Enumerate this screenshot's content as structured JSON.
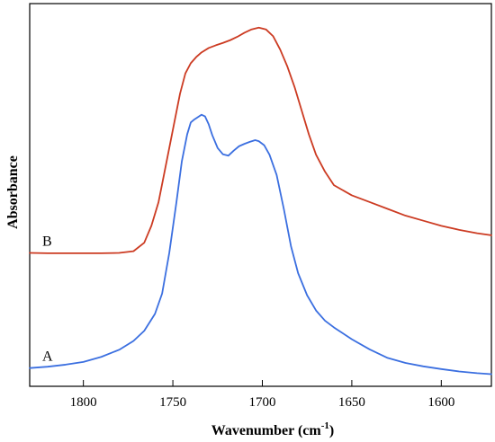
{
  "chart_data": {
    "type": "line",
    "title": "",
    "xlabel": "Wavenumber (cm",
    "xlabel_sup": "-1",
    "xlabel_suffix": ")",
    "ylabel": "Absorbance",
    "xlim": [
      1830,
      1572
    ],
    "x_reversed": true,
    "ylim": [
      0,
      1
    ],
    "y_ticks_shown": false,
    "grid": false,
    "xticks": [
      1800,
      1750,
      1700,
      1650,
      1600
    ],
    "xtick_labels": [
      "1800",
      "1750",
      "1700",
      "1650",
      "1600"
    ],
    "series": [
      {
        "name": "A",
        "color": "#3b6fe0",
        "x": [
          1830,
          1820,
          1810,
          1800,
          1790,
          1780,
          1772,
          1766,
          1760,
          1756,
          1752,
          1748,
          1745,
          1742,
          1740,
          1738,
          1736,
          1734,
          1732,
          1730,
          1728,
          1725,
          1722,
          1719,
          1716,
          1713,
          1710,
          1707,
          1704,
          1702,
          1699,
          1696,
          1692,
          1688,
          1684,
          1680,
          1675,
          1670,
          1665,
          1660,
          1650,
          1640,
          1630,
          1620,
          1610,
          1600,
          1590,
          1580,
          1572
        ],
        "y": [
          0.03,
          0.034,
          0.04,
          0.048,
          0.063,
          0.084,
          0.11,
          0.14,
          0.19,
          0.25,
          0.37,
          0.52,
          0.64,
          0.72,
          0.755,
          0.764,
          0.771,
          0.778,
          0.773,
          0.75,
          0.718,
          0.68,
          0.661,
          0.657,
          0.672,
          0.685,
          0.692,
          0.698,
          0.703,
          0.7,
          0.688,
          0.66,
          0.6,
          0.5,
          0.39,
          0.31,
          0.245,
          0.2,
          0.17,
          0.15,
          0.115,
          0.085,
          0.06,
          0.045,
          0.035,
          0.027,
          0.02,
          0.015,
          0.012
        ]
      },
      {
        "name": "B",
        "color": "#cc3b22",
        "x": [
          1830,
          1820,
          1810,
          1800,
          1790,
          1780,
          1772,
          1766,
          1762,
          1758,
          1755,
          1752,
          1749,
          1746,
          1743,
          1740,
          1737,
          1734,
          1730,
          1726,
          1722,
          1718,
          1714,
          1710,
          1706,
          1702,
          1698,
          1694,
          1690,
          1686,
          1682,
          1678,
          1674,
          1670,
          1665,
          1660,
          1650,
          1640,
          1630,
          1620,
          1610,
          1600,
          1590,
          1580,
          1572
        ],
        "y": [
          0.37,
          0.369,
          0.369,
          0.369,
          0.369,
          0.37,
          0.375,
          0.4,
          0.45,
          0.52,
          0.6,
          0.68,
          0.76,
          0.84,
          0.9,
          0.93,
          0.948,
          0.962,
          0.975,
          0.983,
          0.99,
          0.998,
          1.008,
          1.02,
          1.03,
          1.035,
          1.03,
          1.01,
          0.97,
          0.92,
          0.86,
          0.79,
          0.72,
          0.66,
          0.61,
          0.57,
          0.54,
          0.52,
          0.5,
          0.48,
          0.465,
          0.45,
          0.438,
          0.428,
          0.422
        ]
      }
    ],
    "annotations": [
      {
        "text": "A",
        "series": "A"
      },
      {
        "text": "B",
        "series": "B"
      }
    ]
  }
}
